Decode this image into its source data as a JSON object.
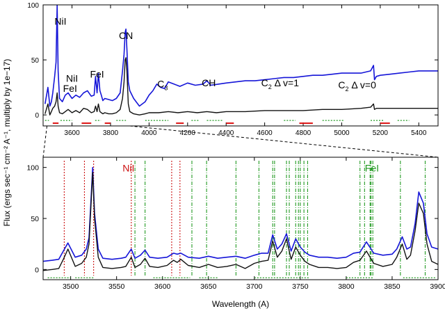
{
  "chart_data": [
    {
      "type": "line",
      "xlabel": "",
      "ylabel": "",
      "xlim": [
        3450,
        5500
      ],
      "ylim": [
        -10,
        100
      ],
      "xticks": [
        3600,
        3800,
        4000,
        4200,
        4400,
        4600,
        4800,
        5000,
        5200,
        5400
      ],
      "yticks": [
        0,
        50,
        100
      ],
      "series": [
        {
          "color": "#1515d8",
          "x": [
            3460,
            3475,
            3485,
            3493,
            3500,
            3510,
            3517,
            3523,
            3528,
            3535,
            3550,
            3565,
            3580,
            3600,
            3620,
            3640,
            3660,
            3680,
            3700,
            3715,
            3722,
            3730,
            3737,
            3745,
            3752,
            3760,
            3770,
            3790,
            3810,
            3830,
            3850,
            3862,
            3870,
            3876,
            3880,
            3885,
            3892,
            3900,
            3920,
            3950,
            3980,
            4000,
            4020,
            4040,
            4060,
            4080,
            4100,
            4130,
            4160,
            4200,
            4240,
            4280,
            4300,
            4320,
            4360,
            4400,
            4450,
            4500,
            4550,
            4600,
            4650,
            4700,
            4750,
            4800,
            4850,
            4900,
            4950,
            5000,
            5050,
            5100,
            5150,
            5165,
            5170,
            5180,
            5200,
            5250,
            5300,
            5350,
            5400,
            5450,
            5500
          ],
          "y": [
            10,
            25,
            8,
            12,
            20,
            35,
            48,
            100,
            40,
            15,
            12,
            18,
            20,
            15,
            18,
            16,
            20,
            22,
            17,
            18,
            35,
            20,
            38,
            22,
            18,
            13,
            15,
            14,
            13,
            15,
            20,
            40,
            55,
            75,
            78,
            60,
            30,
            22,
            15,
            8,
            12,
            18,
            22,
            28,
            25,
            24,
            30,
            28,
            26,
            29,
            27,
            28,
            31,
            27,
            28,
            29,
            30,
            31,
            31,
            32,
            33,
            34,
            34,
            35,
            36,
            36,
            37,
            38,
            38,
            38,
            40,
            45,
            32,
            35,
            36,
            37,
            38,
            39,
            40,
            40,
            40
          ]
        },
        {
          "color": "#111111",
          "x": [
            3460,
            3475,
            3485,
            3493,
            3500,
            3510,
            3517,
            3523,
            3528,
            3535,
            3550,
            3565,
            3580,
            3600,
            3620,
            3640,
            3660,
            3680,
            3700,
            3715,
            3722,
            3730,
            3737,
            3745,
            3752,
            3760,
            3770,
            3790,
            3810,
            3830,
            3850,
            3862,
            3870,
            3876,
            3880,
            3885,
            3892,
            3900,
            3920,
            3950,
            3980,
            4000,
            4050,
            4100,
            4150,
            4200,
            4250,
            4300,
            4350,
            4400,
            4450,
            4500,
            4600,
            4700,
            4800,
            4900,
            5000,
            5100,
            5150,
            5165,
            5170,
            5180,
            5250,
            5350,
            5450,
            5500
          ],
          "y": [
            1,
            10,
            0,
            3,
            6,
            8,
            12,
            20,
            8,
            2,
            1,
            3,
            5,
            2,
            4,
            2,
            6,
            5,
            2,
            3,
            8,
            3,
            10,
            3,
            2,
            1,
            2,
            1,
            1,
            2,
            5,
            15,
            30,
            50,
            52,
            40,
            10,
            3,
            1,
            0,
            1,
            2,
            2,
            3,
            2,
            3,
            2,
            3,
            2,
            3,
            3,
            3,
            4,
            4,
            4,
            5,
            5,
            6,
            7,
            10,
            5,
            6,
            6,
            6,
            6,
            6
          ]
        }
      ],
      "annotations": [
        {
          "text": "NiI",
          "x": 3540,
          "y": 82
        },
        {
          "text": "NiI",
          "x": 3600,
          "y": 30
        },
        {
          "text": "FeI",
          "x": 3590,
          "y": 21
        },
        {
          "text": "FeI",
          "x": 3730,
          "y": 34
        },
        {
          "text": "CN",
          "x": 3880,
          "y": 69
        },
        {
          "text": "C",
          "sub": "3",
          "x": 4070,
          "y": 25
        },
        {
          "text": "CH",
          "x": 4310,
          "y": 26
        },
        {
          "text": "C",
          "sub": "2",
          "post": "Δ v=1",
          "x": 4680,
          "y": 26
        },
        {
          "text": "C",
          "sub": "2",
          "post": "Δ v=0",
          "x": 5080,
          "y": 24
        }
      ],
      "red_marks": [
        [
          3500,
          3530
        ],
        [
          3650,
          3700
        ],
        [
          3770,
          3800
        ],
        [
          4140,
          4180
        ],
        [
          4400,
          4440
        ],
        [
          4780,
          4850
        ],
        [
          5200,
          5250
        ]
      ],
      "green_marks": [
        [
          3460,
          3480
        ],
        [
          3540,
          3600
        ],
        [
          3720,
          3750
        ],
        [
          3830,
          3880
        ],
        [
          3980,
          4100
        ],
        [
          4220,
          4260
        ],
        [
          4300,
          4380
        ],
        [
          4700,
          4760
        ],
        [
          4900,
          5010
        ],
        [
          5150,
          5220
        ],
        [
          5290,
          5350
        ]
      ]
    },
    {
      "type": "line",
      "xlabel": "Wavelength (A)",
      "ylabel": "Flux (ergs sec⁻¹ cm⁻² A⁻¹, multiply by 1e−17)",
      "xlim": [
        3470,
        3900
      ],
      "ylim": [
        -10,
        110
      ],
      "xticks": [
        3500,
        3550,
        3600,
        3650,
        3700,
        3750,
        3800,
        3850,
        3900
      ],
      "yticks": [
        0,
        50,
        100
      ],
      "series": [
        {
          "color": "#1515d8",
          "x": [
            3470,
            3480,
            3487,
            3492,
            3497,
            3505,
            3512,
            3517,
            3520,
            3524,
            3526,
            3530,
            3535,
            3545,
            3555,
            3560,
            3566,
            3570,
            3576,
            3581,
            3586,
            3595,
            3605,
            3612,
            3616,
            3620,
            3628,
            3640,
            3650,
            3660,
            3670,
            3680,
            3690,
            3700,
            3708,
            3715,
            3720,
            3725,
            3730,
            3735,
            3740,
            3745,
            3750,
            3755,
            3760,
            3770,
            3780,
            3790,
            3800,
            3808,
            3815,
            3822,
            3830,
            3840,
            3850,
            3855,
            3861,
            3866,
            3870,
            3875,
            3879,
            3884,
            3888,
            3893,
            3900
          ],
          "y": [
            8,
            9,
            10,
            18,
            26,
            12,
            14,
            20,
            31,
            100,
            55,
            20,
            11,
            10,
            11,
            12,
            20,
            11,
            14,
            19,
            12,
            11,
            12,
            16,
            15,
            16,
            12,
            11,
            13,
            11,
            12,
            13,
            11,
            14,
            16,
            16,
            34,
            20,
            25,
            35,
            18,
            30,
            22,
            17,
            14,
            12,
            12,
            11,
            12,
            16,
            17,
            27,
            16,
            14,
            15,
            20,
            32,
            20,
            22,
            45,
            76,
            65,
            35,
            22,
            20
          ]
        },
        {
          "color": "#111111",
          "x": [
            3470,
            3480,
            3487,
            3492,
            3497,
            3505,
            3512,
            3517,
            3520,
            3524,
            3526,
            3530,
            3535,
            3545,
            3555,
            3560,
            3566,
            3570,
            3576,
            3581,
            3586,
            3595,
            3605,
            3612,
            3616,
            3620,
            3628,
            3640,
            3650,
            3660,
            3670,
            3680,
            3690,
            3700,
            3708,
            3715,
            3720,
            3725,
            3730,
            3735,
            3740,
            3745,
            3750,
            3755,
            3760,
            3770,
            3780,
            3790,
            3800,
            3808,
            3815,
            3822,
            3830,
            3840,
            3850,
            3855,
            3861,
            3866,
            3870,
            3875,
            3879,
            3884,
            3888,
            3893,
            3900
          ],
          "y": [
            -1,
            0,
            1,
            10,
            20,
            3,
            6,
            12,
            25,
            95,
            50,
            12,
            2,
            1,
            2,
            3,
            12,
            2,
            5,
            11,
            3,
            2,
            4,
            9,
            7,
            10,
            4,
            2,
            5,
            2,
            3,
            5,
            1,
            6,
            8,
            9,
            28,
            12,
            18,
            30,
            10,
            22,
            14,
            8,
            5,
            2,
            2,
            1,
            2,
            7,
            9,
            18,
            6,
            3,
            5,
            12,
            25,
            10,
            14,
            38,
            65,
            55,
            25,
            8,
            5
          ]
        }
      ],
      "annotations": [
        {
          "text": "NiI",
          "x": 3563,
          "y": 96,
          "color": "#cc1111"
        },
        {
          "text": "FeI",
          "x": 3828,
          "y": 96,
          "color": "#229a22"
        }
      ],
      "nii_lines": [
        3493,
        3515,
        3525,
        3566,
        3610,
        3619
      ],
      "fei_lines": [
        3570,
        3581,
        3632,
        3648,
        3680,
        3705,
        3720,
        3722,
        3735,
        3738,
        3745,
        3748,
        3750,
        3754,
        3758,
        3815,
        3820,
        3826,
        3827,
        3829,
        3859,
        3886
      ],
      "red_marks": [
        [
          3540,
          3560
        ],
        [
          3665,
          3700
        ],
        [
          3775,
          3800
        ]
      ],
      "green_marks": [
        [
          3475,
          3500
        ],
        [
          3505,
          3525
        ],
        [
          3590,
          3630
        ],
        [
          3640,
          3660
        ],
        [
          3700,
          3760
        ],
        [
          3800,
          3830
        ],
        [
          3862,
          3897
        ]
      ]
    }
  ]
}
